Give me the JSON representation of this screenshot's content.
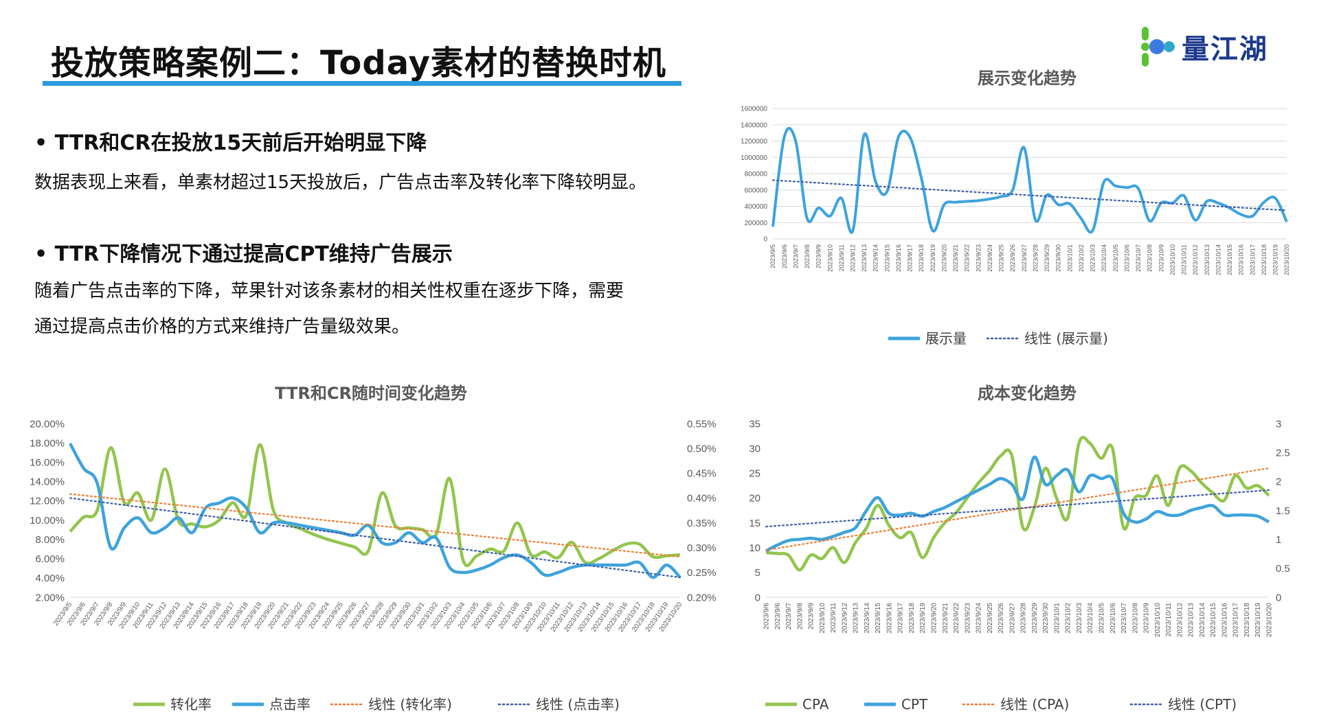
{
  "header": {
    "title": "投放策略案例二：Today素材的替换时机",
    "logo_text": "量江湖",
    "accent_color": "#2e9bde"
  },
  "sections": [
    {
      "heading": "• TTR和CR在投放15天前后开始明显下降",
      "lines": [
        "数据表现上来看，单素材超过15天投放后，广告点击率及转化率下降较明显。"
      ]
    },
    {
      "heading": "• TTR下降情况下通过提高CPT维持广告展示",
      "lines": [
        "随着广告点击率的下降，苹果针对该条素材的相关性权重在逐步下降，需要",
        "通过提高点击价格的方式来维持广告量级效果。"
      ]
    }
  ],
  "chart_data": [
    {
      "id": "impressions",
      "type": "line",
      "title": "展示变化趋势",
      "ylim": [
        0,
        1600000
      ],
      "y_ticks": [
        "0",
        "200000",
        "400000",
        "600000",
        "800000",
        "1000000",
        "1200000",
        "1400000",
        "1600000"
      ],
      "categories": [
        "2023/9/5",
        "2023/9/6",
        "2023/9/7",
        "2023/9/8",
        "2023/9/9",
        "2023/9/10",
        "2023/9/11",
        "2023/9/12",
        "2023/9/13",
        "2023/9/14",
        "2023/9/15",
        "2023/9/16",
        "2023/9/17",
        "2023/9/18",
        "2023/9/19",
        "2023/9/20",
        "2023/9/21",
        "2023/9/22",
        "2023/9/23",
        "2023/9/24",
        "2023/9/25",
        "2023/9/26",
        "2023/9/27",
        "2023/9/28",
        "2023/9/29",
        "2023/9/30",
        "2023/10/1",
        "2023/10/2",
        "2023/10/3",
        "2023/10/4",
        "2023/10/5",
        "2023/10/6",
        "2023/10/7",
        "2023/10/8",
        "2023/10/9",
        "2023/10/10",
        "2023/10/11",
        "2023/10/12",
        "2023/10/13",
        "2023/10/14",
        "2023/10/15",
        "2023/10/16",
        "2023/10/17",
        "2023/10/18",
        "2023/10/19",
        "2023/10/20"
      ],
      "series": [
        {
          "name": "展示量",
          "color": "#3ea3dc",
          "style": "solid",
          "values": [
            150000,
            1250000,
            1200000,
            250000,
            380000,
            280000,
            500000,
            100000,
            1280000,
            700000,
            580000,
            1250000,
            1250000,
            750000,
            100000,
            420000,
            450000,
            460000,
            470000,
            490000,
            520000,
            600000,
            1120000,
            230000,
            540000,
            420000,
            430000,
            250000,
            100000,
            700000,
            650000,
            630000,
            620000,
            220000,
            440000,
            440000,
            530000,
            230000,
            460000,
            440000,
            380000,
            300000,
            280000,
            450000,
            500000,
            210000
          ]
        },
        {
          "name": "线性 (展示量)",
          "color": "#3b5ea8",
          "style": "dotted",
          "trend": [
            720000,
            350000
          ]
        }
      ]
    },
    {
      "id": "ttr_cr",
      "type": "line",
      "title": "TTR和CR随时间变化趋势",
      "ylim": [
        0.02,
        0.2
      ],
      "y_ticks": [
        "2.00%",
        "4.00%",
        "6.00%",
        "8.00%",
        "10.00%",
        "12.00%",
        "14.00%",
        "16.00%",
        "18.00%",
        "20.00%"
      ],
      "y2lim": [
        0.002,
        0.0055
      ],
      "y2_ticks": [
        "0.20%",
        "0.25%",
        "0.30%",
        "0.35%",
        "0.40%",
        "0.45%",
        "0.50%",
        "0.55%"
      ],
      "categories": [
        "2023/9/5",
        "2023/9/6",
        "2023/9/7",
        "2023/9/8",
        "2023/9/9",
        "2023/9/10",
        "2023/9/11",
        "2023/9/12",
        "2023/9/13",
        "2023/9/14",
        "2023/9/15",
        "2023/9/16",
        "2023/9/17",
        "2023/9/18",
        "2023/9/19",
        "2023/9/20",
        "2023/9/21",
        "2023/9/22",
        "2023/9/23",
        "2023/9/24",
        "2023/9/25",
        "2023/9/26",
        "2023/9/27",
        "2023/9/28",
        "2023/9/29",
        "2023/9/30",
        "2023/10/1",
        "2023/10/2",
        "2023/10/3",
        "2023/10/4",
        "2023/10/5",
        "2023/10/6",
        "2023/10/7",
        "2023/10/8",
        "2023/10/9",
        "2023/10/10",
        "2023/10/11",
        "2023/10/12",
        "2023/10/13",
        "2023/10/14",
        "2023/10/15",
        "2023/10/16",
        "2023/10/17",
        "2023/10/18",
        "2023/10/19",
        "2023/10/20"
      ],
      "series": [
        {
          "name": "转化率",
          "color": "#92c54e",
          "style": "solid",
          "axis": "left",
          "values": [
            0.088,
            0.103,
            0.11,
            0.175,
            0.118,
            0.128,
            0.1,
            0.153,
            0.099,
            0.096,
            0.093,
            0.1,
            0.118,
            0.105,
            0.178,
            0.11,
            0.097,
            0.091,
            0.085,
            0.08,
            0.076,
            0.072,
            0.068,
            0.128,
            0.094,
            0.092,
            0.09,
            0.085,
            0.143,
            0.058,
            0.063,
            0.07,
            0.068,
            0.097,
            0.064,
            0.067,
            0.061,
            0.077,
            0.056,
            0.06,
            0.068,
            0.075,
            0.075,
            0.062,
            0.063,
            0.064
          ]
        },
        {
          "name": "点击率",
          "color": "#3ea3dc",
          "style": "solid",
          "axis": "right",
          "values": [
            0.0051,
            0.0046,
            0.0043,
            0.003,
            0.0034,
            0.0036,
            0.0033,
            0.0034,
            0.0036,
            0.0033,
            0.0038,
            0.0039,
            0.004,
            0.0038,
            0.0033,
            0.0035,
            0.0035,
            0.00345,
            0.0034,
            0.00335,
            0.0033,
            0.00325,
            0.00345,
            0.0031,
            0.0031,
            0.0033,
            0.0031,
            0.0032,
            0.0026,
            0.0025,
            0.00255,
            0.00265,
            0.0028,
            0.00285,
            0.0027,
            0.00245,
            0.0025,
            0.0026,
            0.00265,
            0.00265,
            0.00265,
            0.00265,
            0.0027,
            0.0024,
            0.00265,
            0.0024
          ]
        },
        {
          "name": "线性 (转化率)",
          "color": "#ed7d31",
          "style": "dotted",
          "axis": "left",
          "trend": [
            0.127,
            0.062
          ]
        },
        {
          "name": "线性 (点击率)",
          "color": "#3b5ea8",
          "style": "dotted",
          "axis": "right",
          "trend": [
            0.004,
            0.0024
          ]
        }
      ]
    },
    {
      "id": "cost",
      "type": "line",
      "title": "成本变化趋势",
      "ylim": [
        0,
        35
      ],
      "y_ticks": [
        "0",
        "5",
        "10",
        "15",
        "20",
        "25",
        "30",
        "35"
      ],
      "y2lim": [
        0,
        3
      ],
      "y2_ticks": [
        "0",
        "0.5",
        "1",
        "1.5",
        "2",
        "2.5",
        "3"
      ],
      "categories": [
        "2023/9/6",
        "2023/9/6",
        "2023/9/7",
        "2023/9/8",
        "2023/9/9",
        "2023/9/10",
        "2023/9/11",
        "2023/9/12",
        "2023/9/13",
        "2023/9/14",
        "2023/9/15",
        "2023/9/16",
        "2023/9/17",
        "2023/9/18",
        "2023/9/19",
        "2023/9/20",
        "2023/9/21",
        "2023/9/22",
        "2023/9/23",
        "2023/9/24",
        "2023/9/25",
        "2023/9/26",
        "2023/9/27",
        "2023/9/28",
        "2023/9/29",
        "2023/9/30",
        "2023/10/1",
        "2023/10/2",
        "2023/10/3",
        "2023/10/4",
        "2023/10/5",
        "2023/10/6",
        "2023/10/7",
        "2023/10/8",
        "2023/10/9",
        "2023/10/10",
        "2023/10/11",
        "2023/10/12",
        "2023/10/13",
        "2023/10/14",
        "2023/10/15",
        "2023/10/16",
        "2023/10/17",
        "2023/10/18",
        "2023/10/19",
        "2023/10/20"
      ],
      "series": [
        {
          "name": "CPA",
          "color": "#92c54e",
          "style": "solid",
          "axis": "left",
          "values": [
            9.0,
            8.8,
            8.5,
            5.5,
            8.5,
            7.8,
            10.0,
            7.0,
            11.0,
            14.0,
            18.5,
            14.5,
            12.0,
            13.0,
            8.0,
            12.0,
            15.0,
            17.0,
            20.0,
            23.0,
            25.5,
            28.5,
            28.5,
            14.0,
            18.0,
            26.0,
            20.0,
            16.0,
            31.0,
            31.0,
            28.0,
            30.0,
            14.0,
            20.0,
            20.5,
            24.5,
            18.5,
            26.0,
            25.5,
            23.0,
            21.0,
            19.5,
            24.5,
            22.0,
            22.5,
            20.5
          ]
        },
        {
          "name": "CPT",
          "color": "#3ea3dc",
          "style": "solid",
          "axis": "right",
          "values": [
            0.8,
            0.9,
            0.98,
            1.0,
            1.02,
            1.0,
            1.05,
            1.12,
            1.2,
            1.5,
            1.72,
            1.45,
            1.42,
            1.45,
            1.4,
            1.48,
            1.55,
            1.65,
            1.75,
            1.85,
            1.95,
            2.05,
            1.95,
            1.7,
            2.42,
            1.95,
            2.1,
            2.2,
            1.82,
            2.1,
            2.05,
            2.05,
            1.45,
            1.3,
            1.35,
            1.48,
            1.42,
            1.42,
            1.5,
            1.55,
            1.58,
            1.42,
            1.42,
            1.42,
            1.4,
            1.3
          ]
        },
        {
          "name": "线性 (CPA)",
          "color": "#ed7d31",
          "style": "dotted",
          "axis": "left",
          "trend": [
            9.5,
            26.0
          ]
        },
        {
          "name": "线性 (CPT)",
          "color": "#3b5ea8",
          "style": "dotted",
          "axis": "right",
          "trend": [
            1.22,
            1.85
          ]
        }
      ]
    }
  ]
}
